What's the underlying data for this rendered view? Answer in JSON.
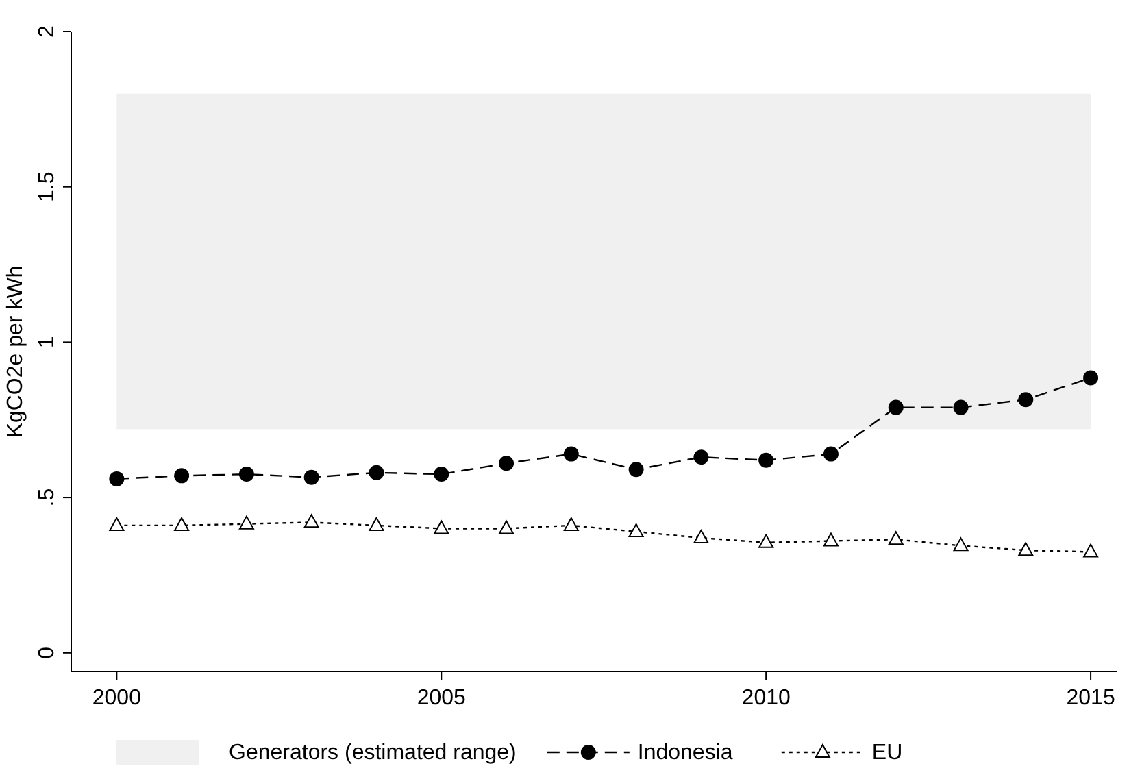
{
  "chart_data": {
    "type": "line",
    "ylabel": "KgCO2e per kWh",
    "x": [
      2000,
      2001,
      2002,
      2003,
      2004,
      2005,
      2006,
      2007,
      2008,
      2009,
      2010,
      2011,
      2012,
      2013,
      2014,
      2015
    ],
    "xlim": [
      1999.3,
      2015.4
    ],
    "xticks": [
      2000,
      2005,
      2010,
      2015
    ],
    "ylim": [
      -0.06,
      2
    ],
    "yticks": [
      0,
      {
        "value": 0.5,
        "label": ".5"
      },
      1,
      1.5,
      2
    ],
    "grid": false,
    "legend": "bottom",
    "bands": [
      {
        "axis": "y",
        "from": 0.72,
        "to": 1.8,
        "label": "Generators (estimated range)",
        "color": "#f0f0f0"
      }
    ],
    "series": [
      {
        "name": "Indonesia",
        "color": "#000000",
        "marker": "circle",
        "line_style": "dashed",
        "values": [
          0.56,
          0.57,
          0.575,
          0.565,
          0.58,
          0.575,
          0.61,
          0.64,
          0.59,
          0.63,
          0.62,
          0.64,
          0.79,
          0.79,
          0.815,
          0.885
        ]
      },
      {
        "name": "EU",
        "color": "#000000",
        "marker": "triangle",
        "line_style": "dotted",
        "values": [
          0.41,
          0.41,
          0.415,
          0.42,
          0.41,
          0.4,
          0.4,
          0.41,
          0.39,
          0.37,
          0.355,
          0.36,
          0.365,
          0.345,
          0.33,
          0.325
        ]
      }
    ]
  }
}
